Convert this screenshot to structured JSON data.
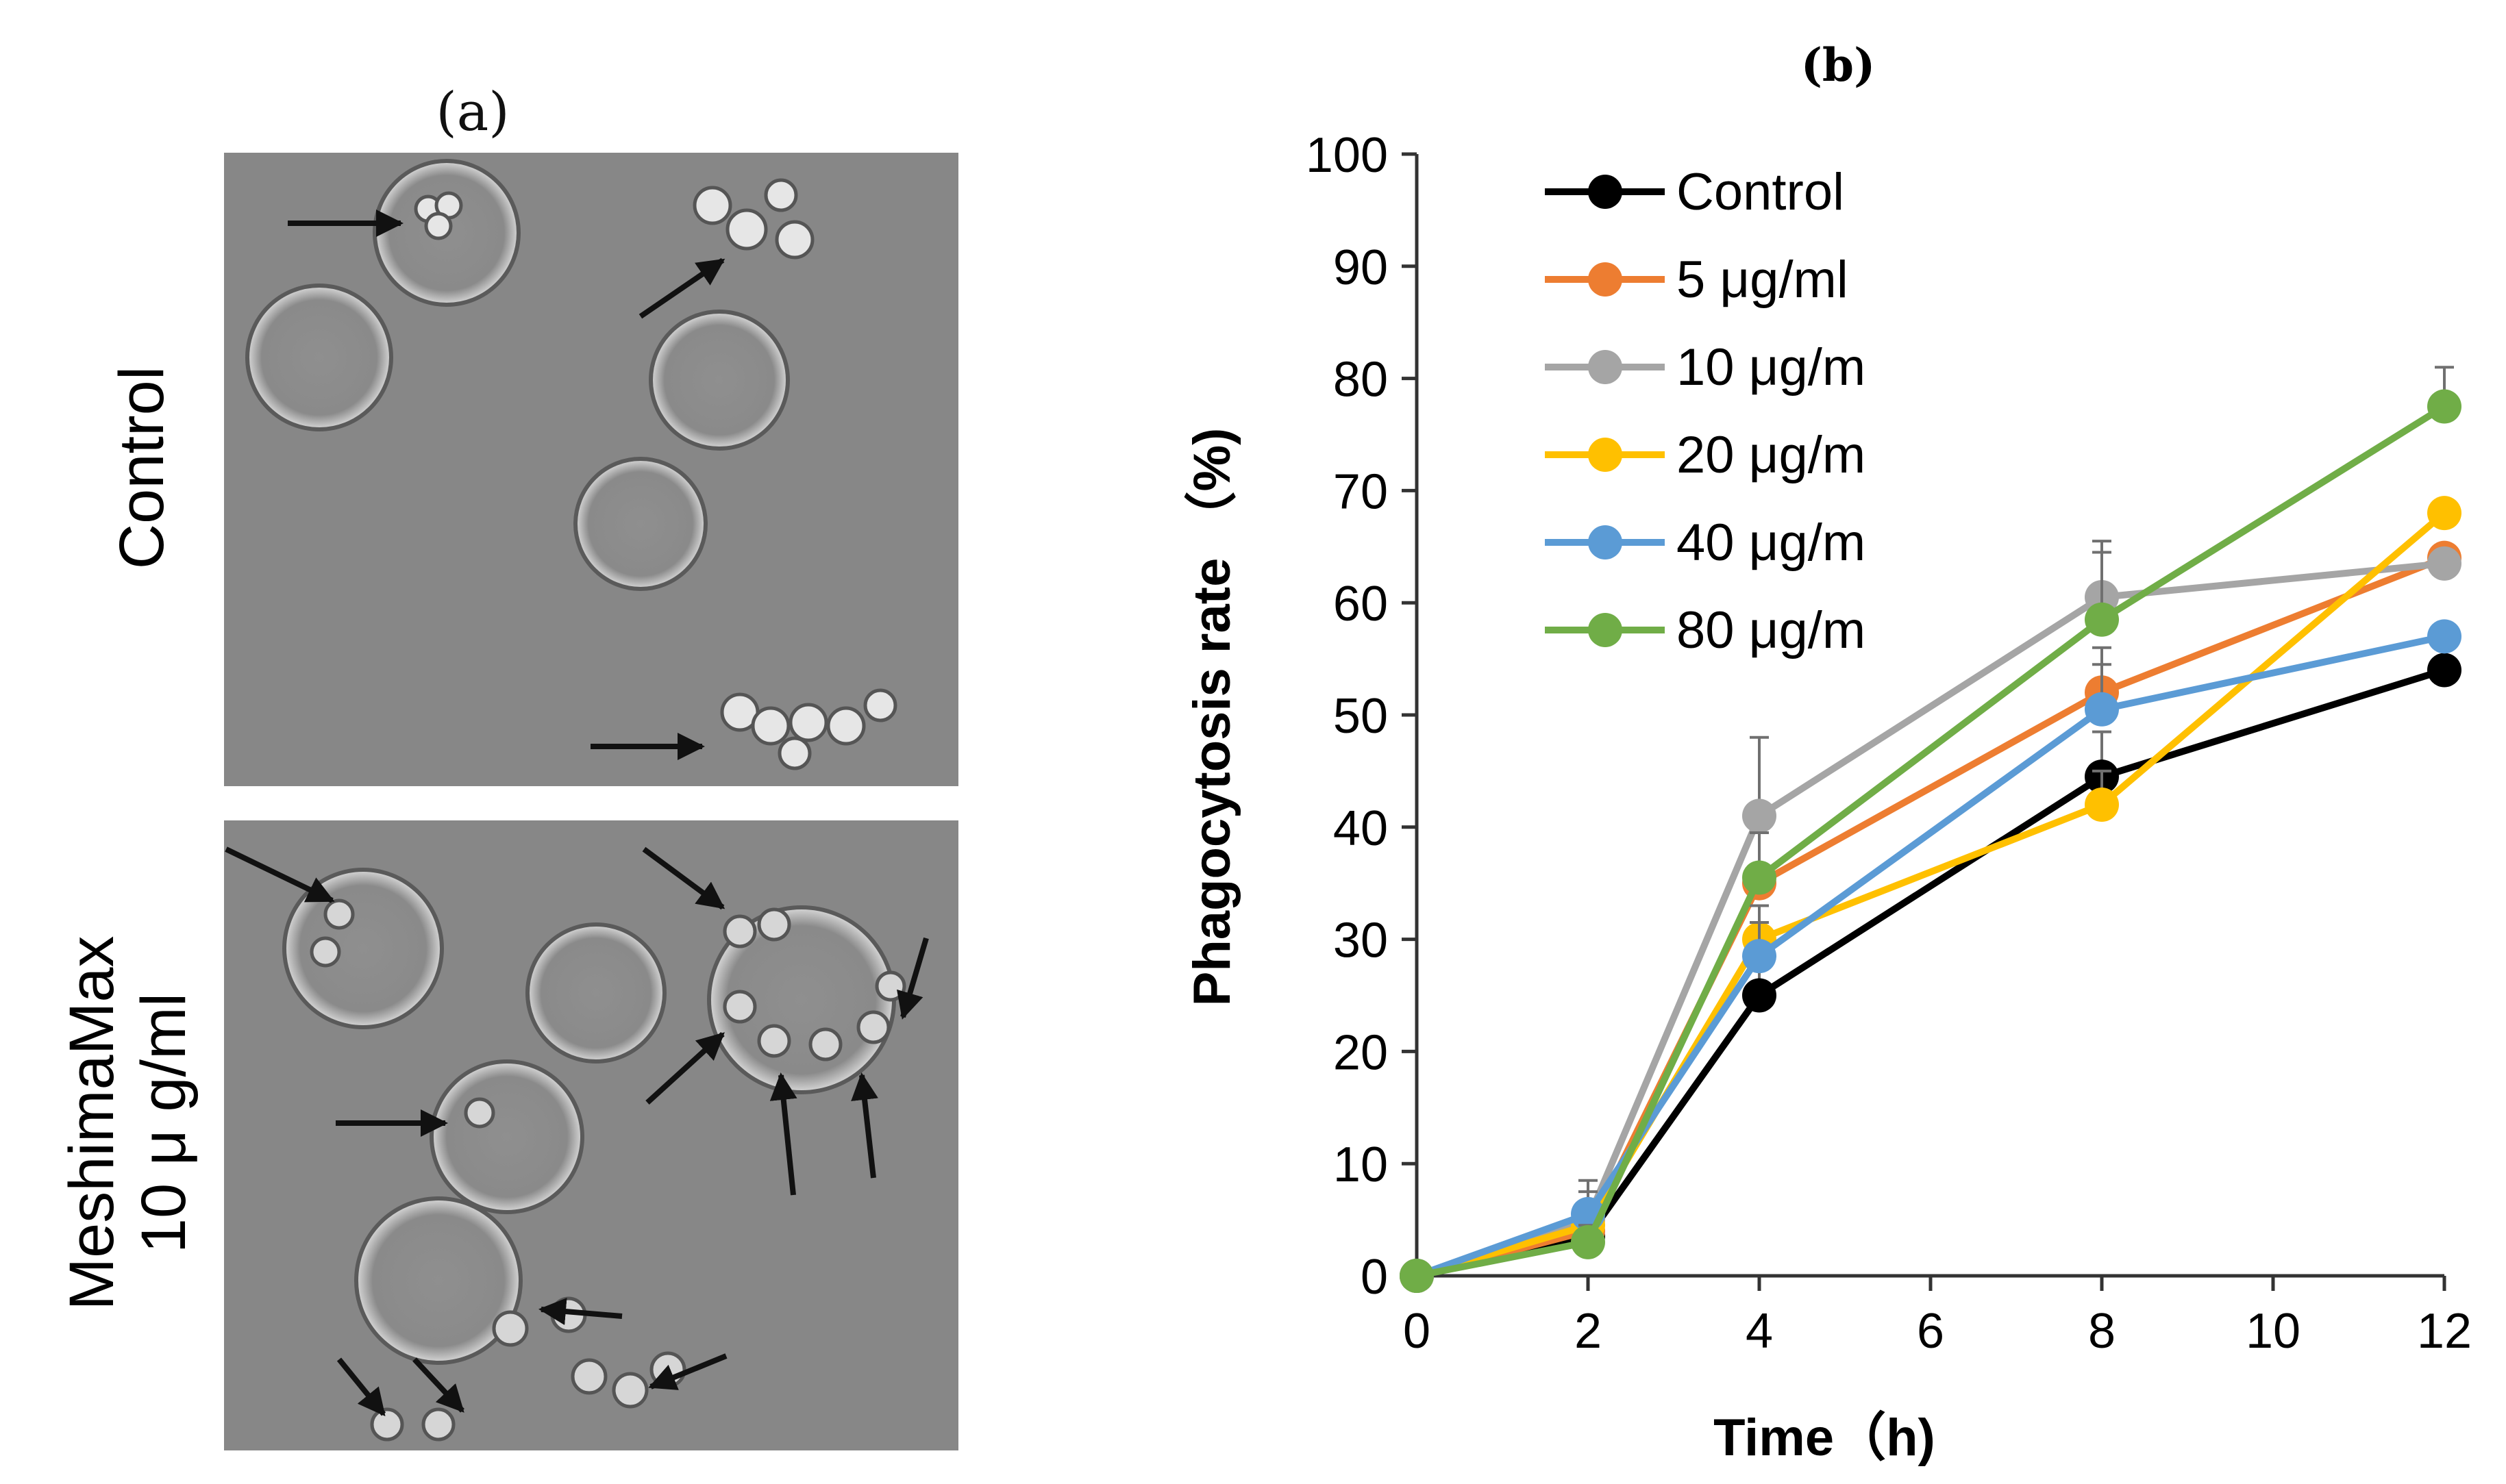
{
  "panel_a": {
    "label": "(a)",
    "row_labels": {
      "control": "Control",
      "treatment_line1": "MeshimaMax",
      "treatment_line2": "10  μ g/ml"
    }
  },
  "chart_data": {
    "type": "line",
    "title": "(b)",
    "xlabel": "Time（h)",
    "ylabel": "Phagocytosis rate （%)",
    "x": [
      0,
      2,
      4,
      8,
      12
    ],
    "xticks": [
      0,
      2,
      4,
      6,
      8,
      10,
      12
    ],
    "yticks": [
      0,
      10,
      20,
      30,
      40,
      50,
      60,
      70,
      80,
      90,
      100
    ],
    "xlim": [
      0,
      12
    ],
    "ylim": [
      0,
      100
    ],
    "grid": false,
    "legend_position": "top-left",
    "series": [
      {
        "name": "Control",
        "color": "#000000",
        "values": [
          0,
          3.5,
          25,
          44.5,
          54
        ],
        "errors": [
          0,
          1.5,
          3,
          4,
          0
        ]
      },
      {
        "name": "5 μg/ml",
        "color": "#ED7D31",
        "values": [
          0,
          4,
          35,
          52,
          64
        ],
        "errors": [
          0,
          2,
          5,
          4,
          0
        ]
      },
      {
        "name": "10 μg/m",
        "color": "#A5A5A5",
        "values": [
          0,
          5,
          41,
          60.5,
          63.5
        ],
        "errors": [
          0,
          3.5,
          7,
          5,
          0
        ]
      },
      {
        "name": "20 μg/m",
        "color": "#FFC000",
        "values": [
          0,
          4.5,
          30,
          42,
          68
        ],
        "errors": [
          0,
          2,
          3,
          3,
          0
        ]
      },
      {
        "name": "40 μg/m",
        "color": "#5B9BD5",
        "values": [
          0,
          5.5,
          28.5,
          50.5,
          57
        ],
        "errors": [
          0,
          2,
          3,
          4,
          0
        ]
      },
      {
        "name": "80 μg/m",
        "color": "#70AD47",
        "values": [
          0,
          3,
          35.5,
          58.5,
          77.5
        ],
        "errors": [
          0,
          1.5,
          4,
          6,
          3.5
        ]
      }
    ]
  }
}
